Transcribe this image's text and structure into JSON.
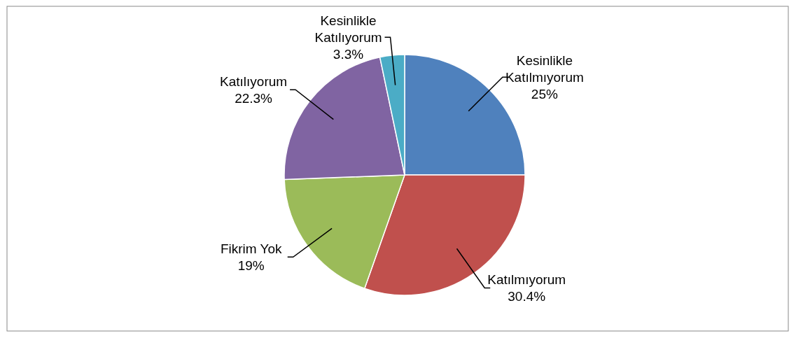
{
  "chart_data": {
    "type": "pie",
    "categories": [
      "Kesinlikle Katılmıyorum",
      "Katılmıyorum",
      "Fikrim Yok",
      "Katılıyorum",
      "Kesinlikle Katılıyorum"
    ],
    "values": [
      25,
      30.4,
      19,
      22.3,
      3.3
    ],
    "colors": [
      "#4f81bd",
      "#c0504d",
      "#9bbb59",
      "#8064a2",
      "#4bacc6"
    ],
    "value_labels": [
      "25%",
      "30.4%",
      "19%",
      "22.3%",
      "3.3%"
    ]
  }
}
